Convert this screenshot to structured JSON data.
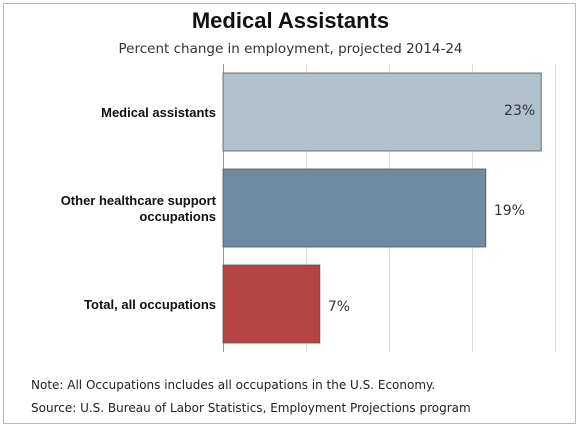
{
  "chart_data": {
    "type": "bar",
    "orientation": "horizontal",
    "title": "Medical Assistants",
    "subtitle": "Percent change in employment, projected 2014-24",
    "categories": [
      [
        "Medical assistants"
      ],
      [
        "Other healthcare support",
        "occupations"
      ],
      [
        "Total, all occupations"
      ]
    ],
    "values": [
      23,
      19,
      7
    ],
    "value_labels": [
      "23%",
      "19%",
      "7%"
    ],
    "bar_colors": [
      "#b0c1cc",
      "#6e8ba2",
      "#b74444"
    ],
    "xlim": [
      0,
      24
    ],
    "grid": true,
    "xlabel": "",
    "ylabel": ""
  },
  "footer": {
    "note": "Note: All Occupations includes all occupations in the U.S. Economy.",
    "source": "Source: U.S. Bureau of Labor Statistics, Employment Projections program"
  }
}
